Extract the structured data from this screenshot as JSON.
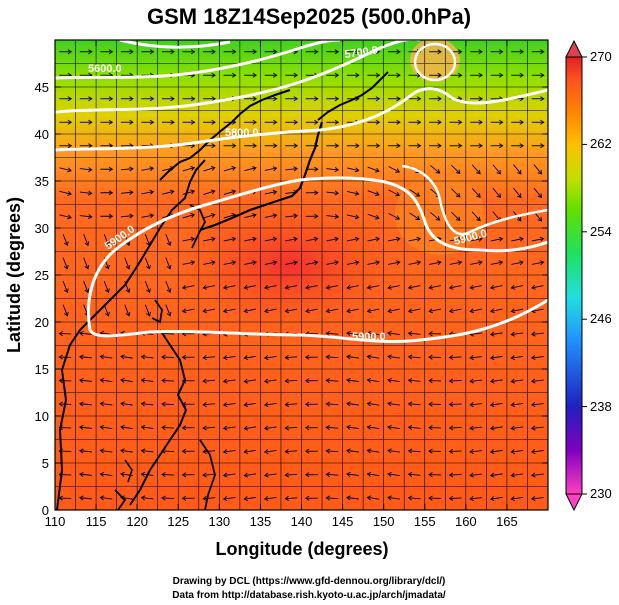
{
  "title": "GSM 18Z14Sep2025 (500.0hPa)",
  "xaxis": {
    "label": "Longitude (degrees)",
    "range": [
      110,
      170
    ],
    "ticks": [
      110,
      115,
      120,
      125,
      130,
      135,
      140,
      145,
      150,
      155,
      160,
      165
    ]
  },
  "yaxis": {
    "label": "Latitude  (degrees)",
    "range": [
      0,
      50
    ],
    "ticks": [
      0,
      5,
      10,
      15,
      20,
      25,
      30,
      35,
      40,
      45
    ]
  },
  "colorbar": {
    "range": [
      230,
      270
    ],
    "ticks": [
      "270",
      "262",
      "254",
      "246",
      "238",
      "230"
    ],
    "colors": [
      "#ff40c0",
      "#8000c0",
      "#2020c0",
      "#2090ff",
      "#20e0e0",
      "#20e060",
      "#60e000",
      "#c0e000",
      "#ffc000",
      "#ff8000",
      "#ff5020",
      "#e02020"
    ]
  },
  "contours": [
    {
      "value": "5900.0",
      "label": "5900.0",
      "shape": "subtropical-high-closed"
    },
    {
      "value": "5700.0",
      "label": "5700.0",
      "shape": "northern-trough"
    },
    {
      "value": "5600.0",
      "label": "5600.0",
      "shape": "northern-trough"
    },
    {
      "value": "5800.0",
      "label": "5800.0",
      "shape": "mid-latitude-wave"
    }
  ],
  "credits": {
    "line1": "Drawing by DCL (https://www.gfd-dennou.org/library/dcl/)",
    "line2": "Data from http://database.rish.kyoto-u.ac.jp/arch/jmadata/"
  }
}
